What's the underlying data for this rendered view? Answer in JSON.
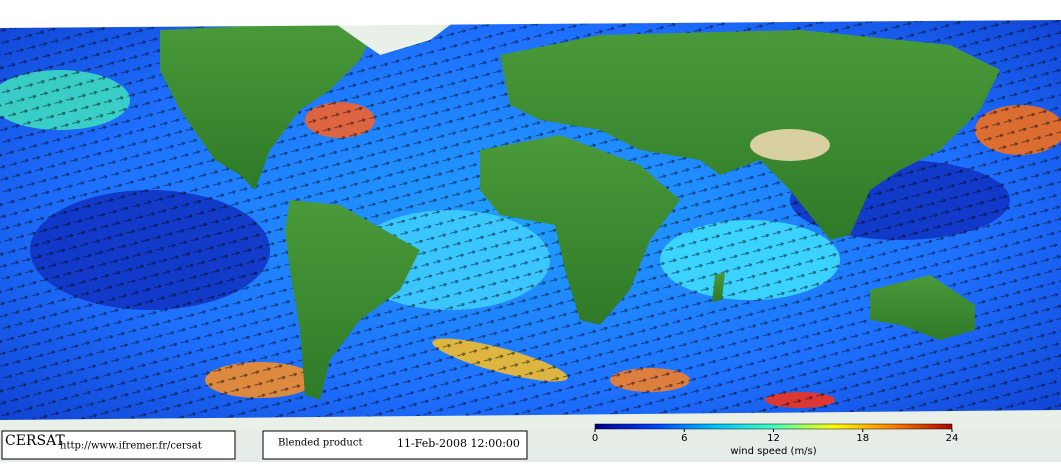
{
  "credit": {
    "name": "CERSAT",
    "url": "http://www.ifremer.fr/cersat"
  },
  "product": {
    "name": "Blended product",
    "date": "11-Feb-2008 12:00:00"
  },
  "colorbar": {
    "label": "wind speed (m/s)",
    "lim": [
      0,
      24
    ],
    "ticks": [
      0,
      6,
      12,
      18,
      24
    ],
    "colors": [
      "#00008f",
      "#0040ff",
      "#00c0ff",
      "#40ffbf",
      "#ffff00",
      "#ff8000",
      "#b00000"
    ]
  }
}
